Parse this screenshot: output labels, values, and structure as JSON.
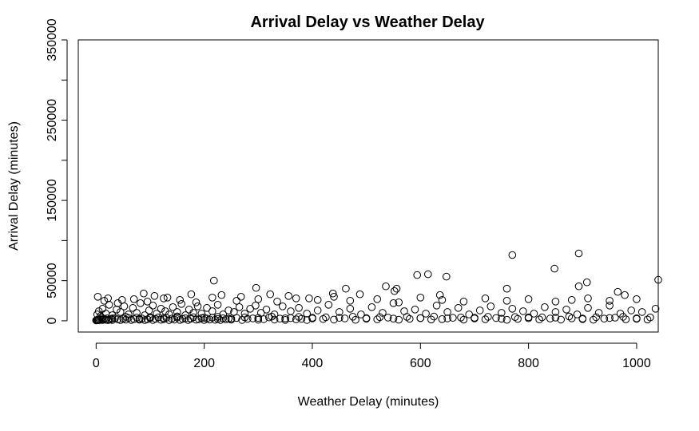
{
  "chart_data": {
    "type": "scatter",
    "title": "Arrival Delay vs Weather Delay",
    "xlabel": "Weather Delay (minutes)",
    "ylabel": "Arrival Delay (minutes)",
    "xlim": [
      -33,
      1040
    ],
    "ylim": [
      -14000,
      350000
    ],
    "x_ticks": [
      0,
      200,
      400,
      600,
      800,
      1000
    ],
    "y_ticks": [
      0,
      50000,
      100000,
      150000,
      200000,
      250000,
      300000,
      350000
    ],
    "x_tick_labels": [
      "0",
      "200",
      "400",
      "600",
      "800",
      "1000"
    ],
    "y_tick_labels": [
      "0",
      "50000",
      "",
      "150000",
      "",
      "250000",
      "",
      "350000"
    ],
    "grid": false,
    "legend": "none",
    "marker": "open-circle",
    "point_color": "#000000",
    "series": [
      {
        "x": [
          0,
          1,
          2,
          3,
          4,
          5,
          6,
          8,
          10,
          12,
          15,
          18,
          20,
          22,
          25,
          28,
          30,
          35,
          40,
          45,
          50,
          55,
          60,
          65,
          70,
          75,
          80,
          85,
          90,
          95,
          100,
          105,
          110,
          115,
          120,
          125,
          130,
          135,
          140,
          145,
          150,
          155,
          160,
          165,
          170,
          175,
          180,
          185,
          190,
          195,
          200,
          205,
          210,
          215,
          220,
          225,
          230,
          235,
          240,
          245,
          250,
          260,
          270,
          280,
          290,
          300,
          310,
          320,
          330,
          340,
          350,
          360,
          370,
          380,
          390,
          400,
          420,
          440,
          460,
          480,
          500,
          520,
          540,
          560,
          580,
          600,
          620,
          640,
          660,
          680,
          700,
          720,
          740,
          760,
          780,
          800,
          820,
          840,
          860,
          880,
          900,
          920,
          940,
          960,
          980,
          1000,
          1020,
          2,
          5,
          8,
          12,
          18,
          24,
          30,
          38,
          45,
          52,
          60,
          68,
          75,
          82,
          90,
          98,
          105,
          112,
          120,
          128,
          135,
          142,
          150,
          158,
          165,
          172,
          180,
          188,
          195,
          205,
          215,
          225,
          235,
          245,
          255,
          265,
          275,
          285,
          295,
          305,
          315,
          330,
          345,
          360,
          375,
          390,
          410,
          430,
          450,
          470,
          490,
          510,
          530,
          550,
          570,
          590,
          610,
          630,
          650,
          670,
          690,
          710,
          730,
          750,
          770,
          790,
          810,
          830,
          850,
          870,
          890,
          910,
          930,
          950,
          970,
          990,
          1010,
          1035,
          15,
          40,
          70,
          95,
          125,
          155,
          185,
          215,
          260,
          300,
          335,
          370,
          410,
          440,
          470,
          520,
          560,
          600,
          640,
          680,
          720,
          760,
          800,
          850,
          880,
          910,
          950,
          1000,
          3,
          22,
          48,
          88,
          108,
          132,
          176,
          218,
          232,
          268,
          296,
          322,
          356,
          394,
          438,
          462,
          488,
          536,
          552,
          556,
          594,
          614,
          636,
          648,
          760,
          770,
          848,
          893,
          893,
          908,
          965,
          978,
          1040,
          10,
          30,
          55,
          80,
          100,
          125,
          150,
          175,
          200,
          225,
          250,
          275,
          300,
          325,
          350,
          375,
          400,
          425,
          450,
          475,
          500,
          525,
          550,
          575,
          600,
          625,
          650,
          675,
          700,
          725,
          750,
          775,
          800,
          825,
          850,
          875,
          900,
          925,
          950,
          975,
          1000,
          1025
        ],
        "y": [
          500,
          800,
          1200,
          900,
          1500,
          700,
          2000,
          1100,
          1800,
          900,
          2500,
          1200,
          3000,
          800,
          1500,
          2200,
          1000,
          3200,
          1800,
          900,
          2600,
          1400,
          3500,
          1100,
          2100,
          4000,
          1300,
          2800,
          900,
          1900,
          3300,
          1000,
          2400,
          4200,
          1200,
          2000,
          3700,
          900,
          2700,
          1500,
          4100,
          1100,
          2300,
          3100,
          1000,
          2600,
          4500,
          1300,
          2000,
          3400,
          1100,
          2800,
          1600,
          3900,
          1200,
          2300,
          1000,
          3100,
          1800,
          2600,
          1400,
          3600,
          1000,
          2400,
          3000,
          1300,
          2000,
          4200,
          1500,
          2700,
          1100,
          3300,
          1800,
          2500,
          1000,
          3800,
          2200,
          1500,
          3000,
          1200,
          2600,
          1800,
          4000,
          1300,
          2400,
          3200,
          1600,
          2100,
          3700,
          1400,
          2900,
          1900,
          3500,
          1200,
          2300,
          4400,
          1700,
          2800,
          1500,
          3100,
          2100,
          1300,
          2700,
          3900,
          1800,
          2400,
          1600,
          8000,
          12000,
          6000,
          15000,
          9000,
          20000,
          7000,
          14000,
          11000,
          18000,
          8000,
          16000,
          10000,
          22000,
          7000,
          13000,
          19000,
          9000,
          15000,
          12000,
          8000,
          17000,
          11000,
          21000,
          7000,
          14000,
          10000,
          18000,
          9000,
          16000,
          12000,
          20000,
          8000,
          13000,
          11000,
          17000,
          9000,
          15000,
          19000,
          10000,
          14000,
          8000,
          18000,
          12000,
          16000,
          9000,
          13000,
          20000,
          11000,
          15000,
          8000,
          17000,
          10000,
          22000,
          12000,
          14000,
          9000,
          19000,
          11000,
          16000,
          8000,
          13000,
          18000,
          10000,
          15000,
          12000,
          9000,
          17000,
          11000,
          14000,
          8000,
          16000,
          10000,
          19000,
          9000,
          13000,
          11000,
          15000,
          25000,
          22000,
          27000,
          24000,
          28000,
          26000,
          23000,
          29000,
          25000,
          27000,
          24000,
          28000,
          26000,
          30000,
          25000,
          27000,
          23000,
          29000,
          26000,
          24000,
          28000,
          25000,
          27000,
          24000,
          26000,
          28000,
          25000,
          27000,
          30000,
          28000,
          26000,
          34000,
          31000,
          29000,
          33000,
          50000,
          32000,
          30000,
          41000,
          33000,
          31000,
          28000,
          34000,
          40000,
          33000,
          43000,
          37000,
          40000,
          57000,
          58000,
          32000,
          55000,
          40000,
          82000,
          65000,
          84000,
          43000,
          48000,
          36000,
          32000,
          51000,
          4000,
          3000,
          5000,
          2500,
          4500,
          3500,
          5500,
          3000,
          4000,
          5000,
          2800,
          4200,
          3600,
          5200,
          3100,
          4800,
          2900,
          4400,
          3700,
          5100,
          3300,
          4600,
          2700,
          4900,
          3400,
          5300,
          3000,
          4100,
          3800,
          5000,
          2600,
          4700,
          3200,
          4300,
          3900,
          5400,
          2800,
          4500,
          3500,
          5000,
          3100,
          4200
        ]
      }
    ]
  }
}
